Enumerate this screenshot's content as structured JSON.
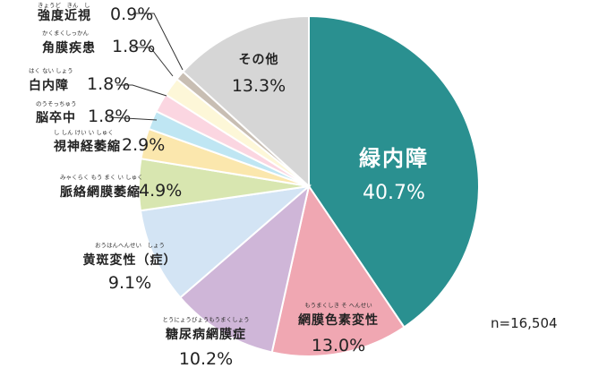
{
  "chart_data": {
    "type": "pie",
    "note": "n=16,504",
    "slices": [
      {
        "name": "緑内障",
        "ruby": "",
        "value": 40.7,
        "pct_label": "40.7%",
        "color": "#2a9090"
      },
      {
        "name": "網膜色素変性",
        "ruby": "もうまくしき そ へんせい",
        "value": 13.0,
        "pct_label": "13.0%",
        "color": "#f0a7b2"
      },
      {
        "name": "糖尿病網膜症",
        "ruby": "とうにょうびょうもうまくしょう",
        "value": 10.2,
        "pct_label": "10.2%",
        "color": "#cfb6d8"
      },
      {
        "name": "黄斑変性（症）",
        "ruby": "おうはんへんせい　しょう",
        "value": 9.1,
        "pct_label": "9.1%",
        "color": "#d3e4f4"
      },
      {
        "name": "脈絡網膜萎縮",
        "ruby": "みゃくらく もう まく い しゅく",
        "value": 4.9,
        "pct_label": "4.9%",
        "color": "#d8e6b0"
      },
      {
        "name": "視神経萎縮",
        "ruby": "し しん けい い しゅく",
        "value": 2.9,
        "pct_label": "2.9%",
        "color": "#fbe7ad"
      },
      {
        "name": "脳卒中",
        "ruby": "のうそっちゅう",
        "value": 1.8,
        "pct_label": "1.8%",
        "color": "#bfe6f3"
      },
      {
        "name": "白内障",
        "ruby": "はく ない しょう",
        "value": 1.8,
        "pct_label": "1.8%",
        "color": "#fbd6e1"
      },
      {
        "name": "角膜疾患",
        "ruby": "かくまくしっかん",
        "value": 1.8,
        "pct_label": "1.8%",
        "color": "#fdf7d8"
      },
      {
        "name": "強度近視",
        "ruby": "きょうど　きん　し",
        "value": 0.9,
        "pct_label": "0.9%",
        "color": "#c8beb3"
      },
      {
        "name": "その他",
        "ruby": "",
        "value": 13.3,
        "pct_label": "13.3%",
        "color": "#d6d6d6"
      }
    ]
  }
}
